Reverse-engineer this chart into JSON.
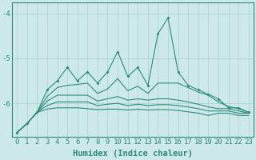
{
  "x": [
    0,
    1,
    2,
    3,
    4,
    5,
    6,
    7,
    8,
    9,
    10,
    11,
    12,
    13,
    14,
    15,
    16,
    17,
    18,
    19,
    20,
    21,
    22,
    23
  ],
  "line1": [
    -6.65,
    -6.45,
    -6.2,
    -5.7,
    -5.5,
    -5.2,
    -5.5,
    -5.3,
    -5.55,
    -5.3,
    -4.85,
    -5.4,
    -5.2,
    -5.6,
    -4.45,
    -4.1,
    -5.3,
    -5.6,
    -5.7,
    -5.8,
    -5.9,
    -6.1,
    -6.1,
    -6.2
  ],
  "line2": [
    -6.65,
    -6.45,
    -6.2,
    -5.85,
    -5.65,
    -5.6,
    -5.58,
    -5.55,
    -5.78,
    -5.68,
    -5.45,
    -5.72,
    -5.62,
    -5.78,
    -5.55,
    -5.55,
    -5.55,
    -5.65,
    -5.75,
    -5.82,
    -5.97,
    -6.07,
    -6.12,
    -6.2
  ],
  "line3": [
    -6.65,
    -6.45,
    -6.2,
    -5.95,
    -5.82,
    -5.82,
    -5.82,
    -5.82,
    -5.95,
    -5.9,
    -5.85,
    -5.93,
    -5.9,
    -5.93,
    -5.9,
    -5.9,
    -5.93,
    -5.97,
    -6.02,
    -6.08,
    -6.12,
    -6.12,
    -6.17,
    -6.22
  ],
  "line4": [
    -6.65,
    -6.45,
    -6.2,
    -6.05,
    -5.97,
    -5.97,
    -5.97,
    -5.97,
    -6.05,
    -6.02,
    -6.0,
    -6.05,
    -6.02,
    -6.05,
    -6.03,
    -6.03,
    -6.05,
    -6.08,
    -6.12,
    -6.17,
    -6.17,
    -6.17,
    -6.22,
    -6.22
  ],
  "line5": [
    -6.65,
    -6.45,
    -6.2,
    -6.13,
    -6.1,
    -6.1,
    -6.1,
    -6.12,
    -6.14,
    -6.13,
    -6.13,
    -6.15,
    -6.13,
    -6.15,
    -6.14,
    -6.14,
    -6.16,
    -6.19,
    -6.22,
    -6.27,
    -6.22,
    -6.22,
    -6.27,
    -6.27
  ],
  "color": "#2e8b7a",
  "bg_color": "#cce8e8",
  "grid_color": "#afd4d4",
  "ylabel_ticks": [
    -4,
    -5,
    -6
  ],
  "ylim": [
    -6.75,
    -3.75
  ],
  "xlim": [
    -0.5,
    23.5
  ],
  "xlabel": "Humidex (Indice chaleur)",
  "xlabel_fontsize": 7.5,
  "tick_fontsize": 6.5
}
